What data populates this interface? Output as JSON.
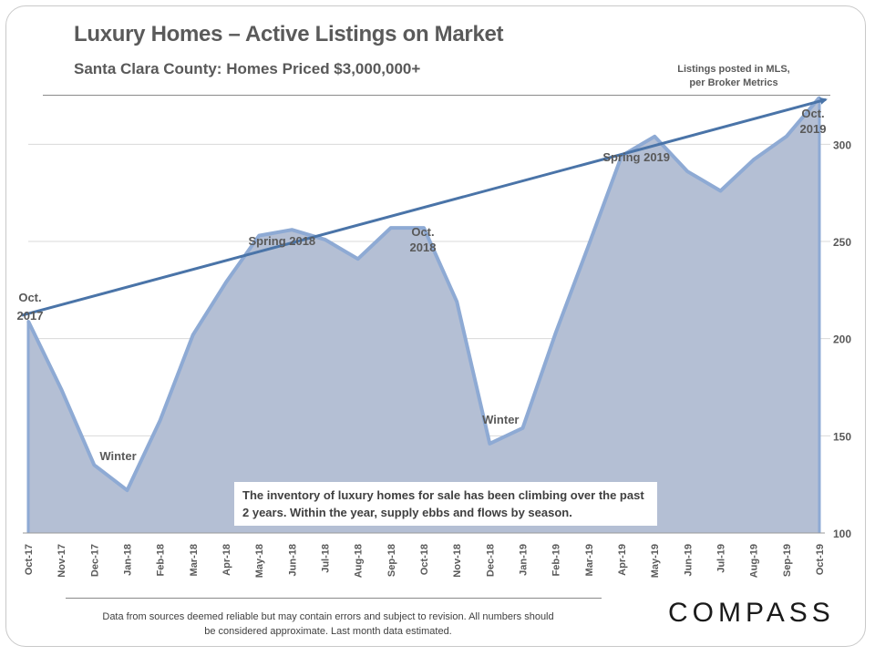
{
  "header": {
    "title": "Luxury Homes – Active Listings on Market",
    "subtitle": "Santa Clara County: Homes Priced $3,000,000+",
    "source_note_line1": "Listings posted in MLS,",
    "source_note_line2": "per Broker Metrics"
  },
  "callout": {
    "text": "The inventory of luxury homes for sale has been climbing over the past 2 years. Within the year, supply ebbs and flows by season."
  },
  "footer": {
    "disclaimer": "Data from sources deemed reliable but may contain errors and subject to revision. All numbers should be considered approximate. Last month data estimated.",
    "brand": "COMPASS"
  },
  "colors": {
    "area_fill": "#b4bfd4",
    "area_line": "#8eaad4",
    "trend_line": "#4a74a8",
    "grid": "#d9d9d9",
    "text": "#595959"
  },
  "chart_data": {
    "type": "area",
    "title": "Luxury Homes – Active Listings on Market",
    "xlabel": "",
    "ylabel": "",
    "ylim": [
      100,
      325
    ],
    "yticks": [
      100,
      150,
      200,
      250,
      300
    ],
    "y_axis_side": "right",
    "grid": true,
    "categories": [
      "Oct-17",
      "Nov-17",
      "Dec-17",
      "Jan-18",
      "Feb-18",
      "Mar-18",
      "Apr-18",
      "May-18",
      "Jun-18",
      "Jul-18",
      "Aug-18",
      "Sep-18",
      "Oct-18",
      "Nov-18",
      "Dec-18",
      "Jan-19",
      "Feb-19",
      "Mar-19",
      "Apr-19",
      "May-19",
      "Jun-19",
      "Jul-19",
      "Aug-19",
      "Sep-19",
      "Oct-19"
    ],
    "series": [
      {
        "name": "Active Listings",
        "values": [
          209,
          174,
          135,
          122,
          158,
          202,
          229,
          253,
          256,
          251,
          241,
          257,
          257,
          219,
          146,
          154,
          203,
          248,
          294,
          304,
          286,
          276,
          292,
          304,
          324
        ]
      }
    ],
    "trendline": {
      "name": "Trend",
      "start": 212,
      "end": 323
    },
    "annotations": [
      {
        "label_lines": [
          "Oct.",
          "2017"
        ],
        "category": "Oct-17",
        "value": 209
      },
      {
        "label_lines": [
          "Winter"
        ],
        "category": "Jan-18",
        "value": 122
      },
      {
        "label_lines": [
          "Spring 2018"
        ],
        "category": "Jun-18",
        "value": 256
      },
      {
        "label_lines": [
          "Oct.",
          "2018"
        ],
        "category": "Oct-18",
        "value": 257
      },
      {
        "label_lines": [
          "Winter"
        ],
        "category": "Dec-18",
        "value": 146
      },
      {
        "label_lines": [
          "Spring 2019"
        ],
        "category": "May-19",
        "value": 304
      },
      {
        "label_lines": [
          "Oct.",
          "2019"
        ],
        "category": "Oct-19",
        "value": 324
      }
    ]
  }
}
